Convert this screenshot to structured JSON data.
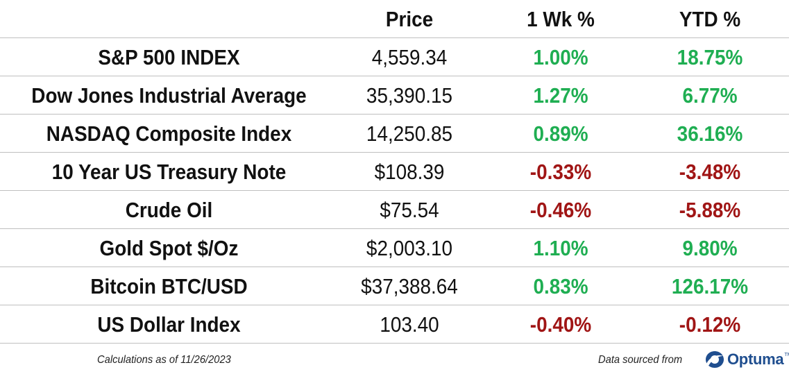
{
  "header": {
    "price": "Price",
    "week": "1 Wk %",
    "ytd": "YTD %"
  },
  "rows": [
    {
      "name": "S&P 500 INDEX",
      "price": "4,559.34",
      "week": "1.00%",
      "ytd": "18.75%",
      "week_dir": "positive",
      "ytd_dir": "positive"
    },
    {
      "name": "Dow Jones Industrial Average",
      "price": "35,390.15",
      "week": "1.27%",
      "ytd": "6.77%",
      "week_dir": "positive",
      "ytd_dir": "positive"
    },
    {
      "name": "NASDAQ Composite Index",
      "price": "14,250.85",
      "week": "0.89%",
      "ytd": "36.16%",
      "week_dir": "positive",
      "ytd_dir": "positive"
    },
    {
      "name": "10 Year US Treasury Note",
      "price": "$108.39",
      "week": "-0.33%",
      "ytd": "-3.48%",
      "week_dir": "negative",
      "ytd_dir": "negative"
    },
    {
      "name": "Crude Oil",
      "price": "$75.54",
      "week": "-0.46%",
      "ytd": "-5.88%",
      "week_dir": "negative",
      "ytd_dir": "negative"
    },
    {
      "name": "Gold Spot $/Oz",
      "price": "$2,003.10",
      "week": "1.10%",
      "ytd": "9.80%",
      "week_dir": "positive",
      "ytd_dir": "positive"
    },
    {
      "name": "Bitcoin BTC/USD",
      "price": "$37,388.64",
      "week": "0.83%",
      "ytd": "126.17%",
      "week_dir": "positive",
      "ytd_dir": "positive"
    },
    {
      "name": "US Dollar Index",
      "price": "103.40",
      "week": "-0.40%",
      "ytd": "-0.12%",
      "week_dir": "negative",
      "ytd_dir": "negative"
    }
  ],
  "colors": {
    "positive": "#1fae52",
    "negative": "#a01515",
    "divider": "#bfbfbf",
    "logo": "#1f4e8f"
  },
  "footer": {
    "calc_note": "Calculations as of 11/26/2023",
    "source_note": "Data sourced from",
    "logo_text": "Optuma",
    "logo_icon": "optuma-logo-icon"
  }
}
